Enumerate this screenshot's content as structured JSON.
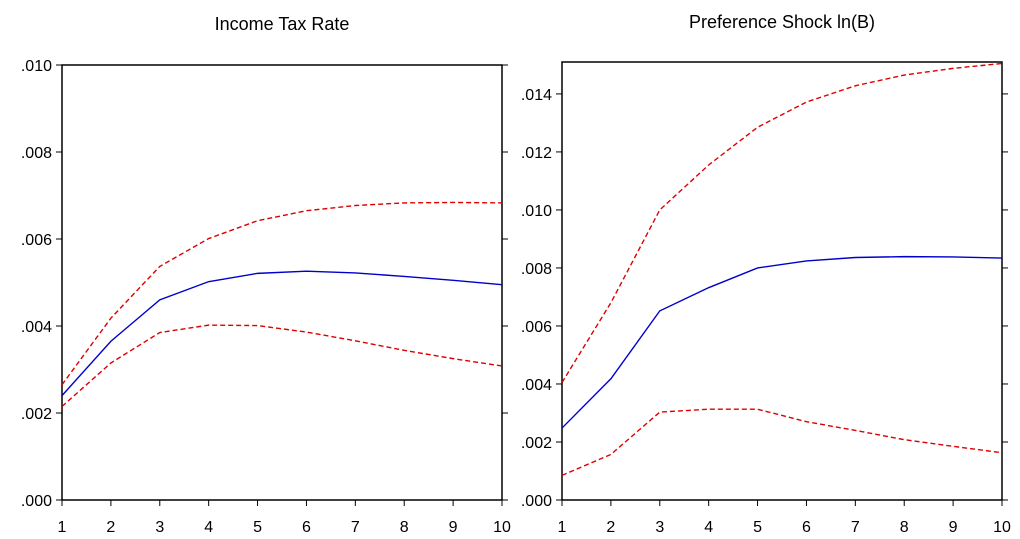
{
  "chart_data": [
    {
      "type": "line",
      "title": "Income Tax Rate",
      "xlabel": "",
      "ylabel": "",
      "x": [
        1,
        2,
        3,
        4,
        5,
        6,
        7,
        8,
        9,
        10
      ],
      "xlim": [
        1,
        10
      ],
      "ylim": [
        0.0,
        0.01
      ],
      "yticks": [
        ".000",
        ".002",
        ".004",
        ".006",
        ".008",
        ".010"
      ],
      "ytick_values": [
        0.0,
        0.002,
        0.004,
        0.006,
        0.008,
        0.01
      ],
      "xticks": [
        "1",
        "2",
        "3",
        "4",
        "5",
        "6",
        "7",
        "8",
        "9",
        "10"
      ],
      "grid": false,
      "series": [
        {
          "style": "solid",
          "color": "#0000cc",
          "values": [
            0.0024,
            0.00365,
            0.0046,
            0.00502,
            0.00521,
            0.00526,
            0.00522,
            0.00514,
            0.00505,
            0.00495
          ]
        },
        {
          "style": "dashed",
          "color": "#dd0000",
          "values": [
            0.00265,
            0.00418,
            0.00537,
            0.00601,
            0.00642,
            0.00665,
            0.00677,
            0.00683,
            0.00684,
            0.00683
          ]
        },
        {
          "style": "dashed",
          "color": "#dd0000",
          "values": [
            0.00215,
            0.00315,
            0.00385,
            0.00402,
            0.00401,
            0.00386,
            0.00366,
            0.00344,
            0.00325,
            0.00308
          ]
        }
      ]
    },
    {
      "type": "line",
      "title": "Preference Shock ln(B)",
      "xlabel": "",
      "ylabel": "",
      "x": [
        1,
        2,
        3,
        4,
        5,
        6,
        7,
        8,
        9,
        10
      ],
      "xlim": [
        1,
        10
      ],
      "ylim": [
        0.0,
        0.0151
      ],
      "yticks": [
        ".000",
        ".002",
        ".004",
        ".006",
        ".008",
        ".010",
        ".012",
        ".014"
      ],
      "ytick_values": [
        0.0,
        0.002,
        0.004,
        0.006,
        0.008,
        0.01,
        0.012,
        0.014
      ],
      "xticks": [
        "1",
        "2",
        "3",
        "4",
        "5",
        "6",
        "7",
        "8",
        "9",
        "10"
      ],
      "grid": false,
      "series": [
        {
          "style": "solid",
          "color": "#0000cc",
          "values": [
            0.00248,
            0.00418,
            0.00652,
            0.00732,
            0.008,
            0.00824,
            0.00836,
            0.00839,
            0.00838,
            0.00834
          ]
        },
        {
          "style": "dashed",
          "color": "#dd0000",
          "values": [
            0.00405,
            0.0068,
            0.01,
            0.01155,
            0.01285,
            0.01372,
            0.01428,
            0.01465,
            0.01488,
            0.01505
          ]
        },
        {
          "style": "dashed",
          "color": "#dd0000",
          "values": [
            0.00085,
            0.00157,
            0.00303,
            0.00313,
            0.00313,
            0.0027,
            0.0024,
            0.00208,
            0.00185,
            0.00163
          ]
        }
      ]
    }
  ]
}
